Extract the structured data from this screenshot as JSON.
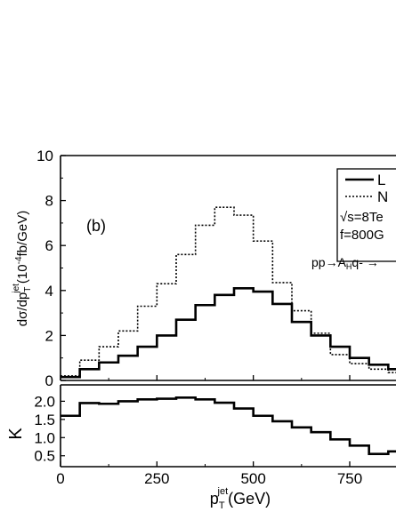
{
  "chart_data": [
    {
      "type": "line",
      "panel_label": "(b)",
      "ylabel": {
        "main": "dσ/dp",
        "sub": "T",
        "sup": "jet",
        "rest": "(10",
        "exp": "-4",
        "unit": "fb/GeV)"
      },
      "xlim": [
        0,
        870
      ],
      "ylim": [
        0,
        10
      ],
      "y_ticks": [
        0,
        2,
        4,
        6,
        8,
        10
      ],
      "x_ticks": [
        0,
        250,
        500,
        750
      ],
      "legend": {
        "entries": [
          {
            "label": "L",
            "style": "solid"
          },
          {
            "label": "N",
            "style": "dotted"
          }
        ],
        "notes": [
          "√s=8Te",
          "f=800G"
        ]
      },
      "annotation": {
        "prefix": "pp→A",
        "sub": "H",
        "suffix": "q- →"
      },
      "bin_edges": [
        0,
        50,
        100,
        150,
        200,
        250,
        300,
        350,
        400,
        450,
        500,
        550,
        600,
        650,
        700,
        750,
        800,
        850,
        900
      ],
      "series": [
        {
          "name": "L",
          "style": "solid",
          "values": [
            0.15,
            0.5,
            0.8,
            1.1,
            1.5,
            2.0,
            2.7,
            3.35,
            3.8,
            4.1,
            3.95,
            3.4,
            2.6,
            2.0,
            1.5,
            1.0,
            0.7,
            0.5
          ]
        },
        {
          "name": "N",
          "style": "dotted",
          "values": [
            0.2,
            0.9,
            1.5,
            2.2,
            3.3,
            4.3,
            5.6,
            6.9,
            7.7,
            7.35,
            6.2,
            4.35,
            3.1,
            2.1,
            1.15,
            0.75,
            0.5,
            0.35
          ]
        }
      ]
    },
    {
      "type": "line",
      "ylabel": "K",
      "xlabel": {
        "main": "p",
        "sub": "T",
        "sup": "jet",
        "unit": "(GeV)"
      },
      "xlim": [
        0,
        870
      ],
      "ylim": [
        0.2,
        2.45
      ],
      "y_ticks": [
        "2.0",
        "1.5",
        "1.0",
        "0.5"
      ],
      "y_tick_values": [
        2.0,
        1.5,
        1.0,
        0.5
      ],
      "x_ticks": [
        0,
        250,
        500,
        750
      ],
      "bin_edges": [
        0,
        50,
        100,
        150,
        200,
        250,
        300,
        350,
        400,
        450,
        500,
        550,
        600,
        650,
        700,
        750,
        800,
        850,
        900
      ],
      "series": [
        {
          "name": "K",
          "style": "solid",
          "values": [
            1.6,
            1.95,
            1.93,
            2.0,
            2.05,
            2.07,
            2.1,
            2.05,
            1.96,
            1.8,
            1.6,
            1.45,
            1.28,
            1.15,
            0.95,
            0.78,
            0.55,
            0.62
          ]
        }
      ]
    }
  ]
}
